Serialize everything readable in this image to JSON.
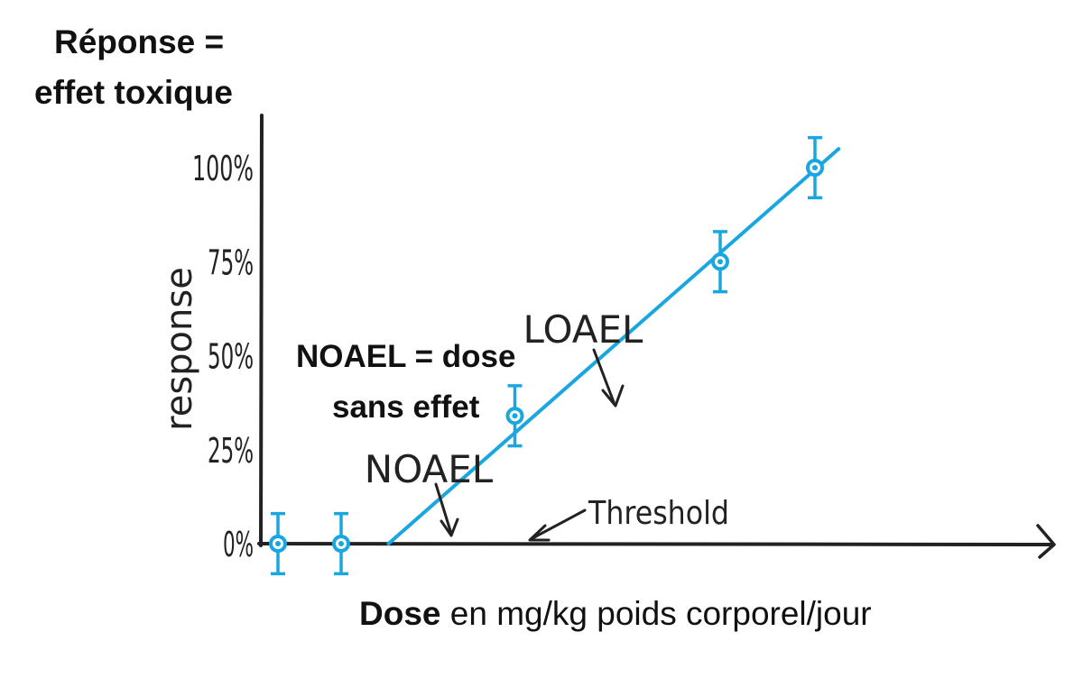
{
  "chart_data": {
    "type": "scatter",
    "title_lines": [
      "Réponse =",
      "effet toxique"
    ],
    "ylabel": "response",
    "yticks": [
      "0%",
      "25%",
      "50%",
      "75%",
      "100%"
    ],
    "ylim": [
      0,
      100
    ],
    "xlabel_bold": "Dose",
    "xlabel_rest": " en mg/kg poids corporel/jour",
    "x_ticks": "none",
    "grid": false,
    "series": [
      {
        "points": [
          {
            "x": 1.0,
            "y": 0,
            "err": 8
          },
          {
            "x": 1.4,
            "y": 0,
            "err": 8
          },
          {
            "x": 2.5,
            "y": 34,
            "err": 8
          },
          {
            "x": 3.8,
            "y": 75,
            "err": 8
          },
          {
            "x": 4.4,
            "y": 100,
            "err": 8
          }
        ],
        "fit_line": [
          [
            1.7,
            0
          ],
          [
            4.55,
            105
          ]
        ],
        "color": "#1aa7e0"
      }
    ],
    "annotations": {
      "noael": "NOAEL",
      "loael": "LOAEL",
      "threshold": "Threshold",
      "noael_definition": [
        "NOAEL = dose",
        "sans effet"
      ]
    }
  }
}
